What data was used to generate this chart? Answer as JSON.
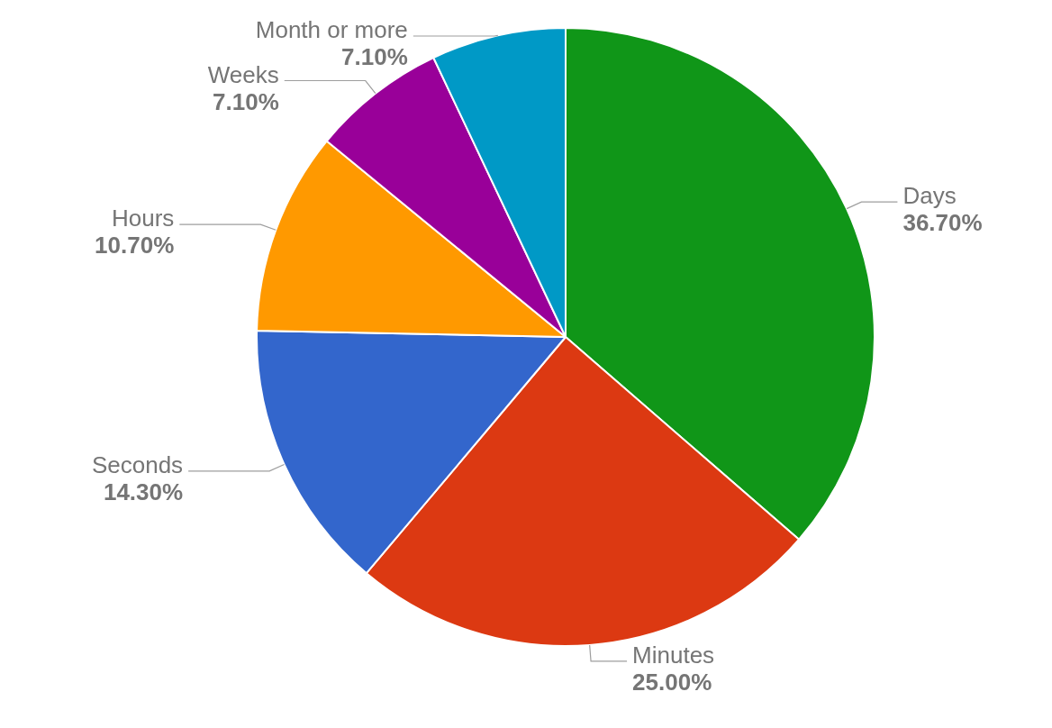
{
  "chart_data": {
    "type": "pie",
    "categories": [
      "Days",
      "Minutes",
      "Seconds",
      "Hours",
      "Weeks",
      "Month or more"
    ],
    "values": [
      36.7,
      25.0,
      14.3,
      10.7,
      7.1,
      7.1
    ],
    "colors": [
      "#109618",
      "#dc3912",
      "#3366cc",
      "#ff9900",
      "#990099",
      "#0099c6"
    ],
    "value_labels": [
      "36.70%",
      "25.00%",
      "14.30%",
      "10.70%",
      "7.10%",
      "7.10%"
    ],
    "legend": false
  }
}
